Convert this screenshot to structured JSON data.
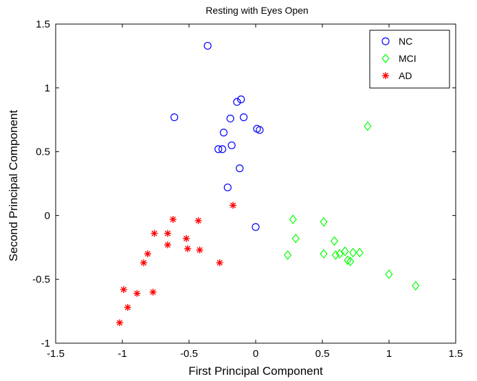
{
  "chart_data": {
    "type": "scatter",
    "title": "Resting with Eyes Open",
    "xlabel": "First Principal Component",
    "ylabel": "Second Principal Component",
    "xlim": [
      -1.5,
      1.5
    ],
    "ylim": [
      -1,
      1.5
    ],
    "xticks": [
      -1.5,
      -1,
      -0.5,
      0,
      0.5,
      1,
      1.5
    ],
    "yticks": [
      -1,
      -0.5,
      0,
      0.5,
      1,
      1.5
    ],
    "xtick_labels": [
      "-1.5",
      "-1",
      "-0.5",
      "0",
      "0.5",
      "1",
      "1.5"
    ],
    "ytick_labels": [
      "-1",
      "-0.5",
      "0",
      "0.5",
      "1",
      "1.5"
    ],
    "grid": false,
    "legend_position": "top-right",
    "series": [
      {
        "name": "NC",
        "marker": "circle",
        "color": "#0000ff",
        "points": [
          [
            -0.36,
            1.33
          ],
          [
            -0.61,
            0.77
          ],
          [
            -0.11,
            0.91
          ],
          [
            -0.14,
            0.89
          ],
          [
            -0.09,
            0.77
          ],
          [
            -0.19,
            0.76
          ],
          [
            0.01,
            0.68
          ],
          [
            0.03,
            0.67
          ],
          [
            -0.24,
            0.65
          ],
          [
            -0.28,
            0.52
          ],
          [
            -0.25,
            0.52
          ],
          [
            -0.18,
            0.55
          ],
          [
            -0.12,
            0.37
          ],
          [
            -0.21,
            0.22
          ],
          [
            0.0,
            -0.09
          ]
        ]
      },
      {
        "name": "MCI",
        "marker": "diamond",
        "color": "#00ff00",
        "points": [
          [
            0.84,
            0.7
          ],
          [
            0.28,
            -0.03
          ],
          [
            0.51,
            -0.05
          ],
          [
            0.3,
            -0.18
          ],
          [
            0.59,
            -0.2
          ],
          [
            0.24,
            -0.31
          ],
          [
            0.51,
            -0.3
          ],
          [
            0.6,
            -0.31
          ],
          [
            0.63,
            -0.3
          ],
          [
            0.67,
            -0.28
          ],
          [
            0.69,
            -0.35
          ],
          [
            0.71,
            -0.36
          ],
          [
            0.73,
            -0.29
          ],
          [
            0.78,
            -0.29
          ],
          [
            1.0,
            -0.46
          ],
          [
            1.2,
            -0.55
          ]
        ]
      },
      {
        "name": "AD",
        "marker": "star",
        "color": "#ff0000",
        "points": [
          [
            -0.17,
            0.08
          ],
          [
            -0.62,
            -0.03
          ],
          [
            -0.43,
            -0.04
          ],
          [
            -0.76,
            -0.14
          ],
          [
            -0.66,
            -0.14
          ],
          [
            -0.52,
            -0.18
          ],
          [
            -0.66,
            -0.23
          ],
          [
            -0.51,
            -0.26
          ],
          [
            -0.42,
            -0.27
          ],
          [
            -0.81,
            -0.3
          ],
          [
            -0.84,
            -0.37
          ],
          [
            -0.27,
            -0.37
          ],
          [
            -0.99,
            -0.58
          ],
          [
            -0.77,
            -0.6
          ],
          [
            -0.89,
            -0.61
          ],
          [
            -0.96,
            -0.72
          ],
          [
            -1.02,
            -0.84
          ]
        ]
      }
    ]
  }
}
